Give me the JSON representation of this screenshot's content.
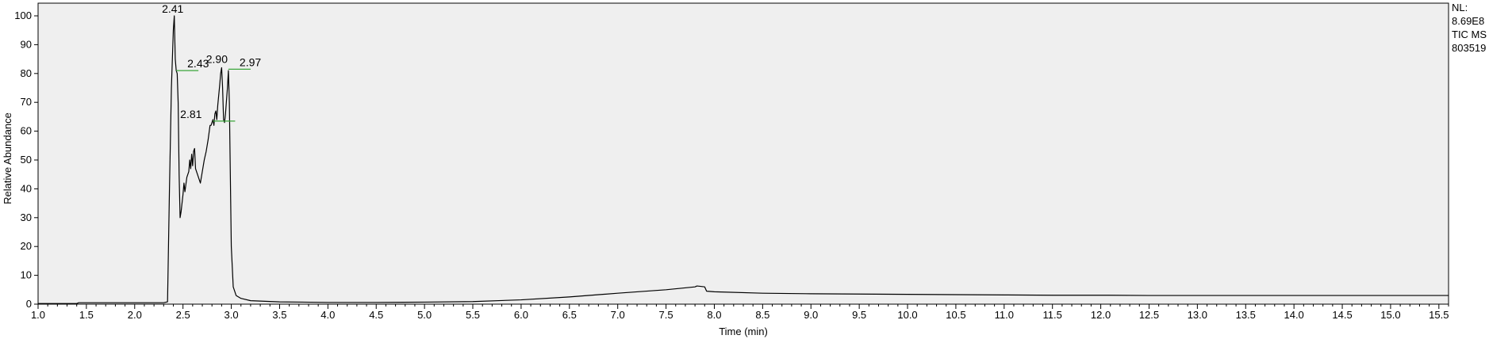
{
  "chart_data": {
    "type": "line",
    "xlabel": "Time (min)",
    "ylabel": "Relative Abundance",
    "xlim": [
      1.0,
      15.6
    ],
    "ylim": [
      0,
      100
    ],
    "x_ticks": [
      "1.0",
      "1.5",
      "2.0",
      "2.5",
      "3.0",
      "3.5",
      "4.0",
      "4.5",
      "5.0",
      "5.5",
      "6.0",
      "6.5",
      "7.0",
      "7.5",
      "8.0",
      "8.5",
      "9.0",
      "9.5",
      "10.0",
      "10.5",
      "11.0",
      "11.5",
      "12.0",
      "12.5",
      "13.0",
      "13.5",
      "14.0",
      "14.5",
      "15.0",
      "15.5"
    ],
    "y_ticks": [
      "0",
      "10",
      "20",
      "30",
      "40",
      "50",
      "60",
      "70",
      "80",
      "90",
      "100"
    ],
    "grid": false,
    "info": [
      "NL:",
      "8.69E8",
      "TIC  MS",
      "803519"
    ],
    "peak_labels": [
      {
        "text": "2.41",
        "x": 2.41,
        "y": 100
      },
      {
        "text": "2.43",
        "x": 2.43,
        "y": 81
      },
      {
        "text": "2.81",
        "x": 2.81,
        "y": 63.5
      },
      {
        "text": "2.90",
        "x": 2.9,
        "y": 81.5
      },
      {
        "text": "2.97",
        "x": 2.97,
        "y": 81.5
      }
    ],
    "series": [
      {
        "points": [
          [
            1.0,
            0.2
          ],
          [
            1.4,
            0.2
          ],
          [
            1.42,
            0.5
          ],
          [
            2.3,
            0.5
          ],
          [
            2.34,
            0.8
          ],
          [
            2.36,
            40
          ],
          [
            2.38,
            75
          ],
          [
            2.4,
            95
          ],
          [
            2.41,
            100
          ],
          [
            2.42,
            85
          ],
          [
            2.43,
            81
          ],
          [
            2.44,
            80
          ],
          [
            2.45,
            70
          ],
          [
            2.46,
            45
          ],
          [
            2.47,
            30
          ],
          [
            2.48,
            32
          ],
          [
            2.5,
            38
          ],
          [
            2.51,
            42
          ],
          [
            2.52,
            39
          ],
          [
            2.54,
            44
          ],
          [
            2.56,
            46
          ],
          [
            2.57,
            50
          ],
          [
            2.58,
            47
          ],
          [
            2.59,
            52
          ],
          [
            2.6,
            48
          ],
          [
            2.61,
            53
          ],
          [
            2.62,
            54
          ],
          [
            2.63,
            47
          ],
          [
            2.65,
            45
          ],
          [
            2.67,
            43
          ],
          [
            2.68,
            42
          ],
          [
            2.7,
            46
          ],
          [
            2.72,
            50
          ],
          [
            2.74,
            53
          ],
          [
            2.76,
            57
          ],
          [
            2.78,
            62
          ],
          [
            2.79,
            62
          ],
          [
            2.8,
            63
          ],
          [
            2.81,
            64
          ],
          [
            2.82,
            62
          ],
          [
            2.83,
            66
          ],
          [
            2.84,
            67
          ],
          [
            2.85,
            64
          ],
          [
            2.86,
            69
          ],
          [
            2.88,
            76
          ],
          [
            2.89,
            80
          ],
          [
            2.9,
            82
          ],
          [
            2.91,
            75
          ],
          [
            2.92,
            64
          ],
          [
            2.93,
            63
          ],
          [
            2.94,
            66
          ],
          [
            2.96,
            75
          ],
          [
            2.97,
            81
          ],
          [
            2.98,
            70
          ],
          [
            2.99,
            45
          ],
          [
            3.0,
            20
          ],
          [
            3.02,
            6
          ],
          [
            3.05,
            3
          ],
          [
            3.1,
            2
          ],
          [
            3.2,
            1.2
          ],
          [
            3.5,
            0.8
          ],
          [
            4.0,
            0.6
          ],
          [
            4.5,
            0.6
          ],
          [
            5.0,
            0.7
          ],
          [
            5.5,
            0.9
          ],
          [
            6.0,
            1.5
          ],
          [
            6.5,
            2.5
          ],
          [
            7.0,
            3.8
          ],
          [
            7.5,
            5.0
          ],
          [
            7.8,
            6.0
          ],
          [
            7.82,
            6.3
          ],
          [
            7.85,
            6.2
          ],
          [
            7.9,
            6.0
          ],
          [
            7.92,
            4.5
          ],
          [
            8.0,
            4.3
          ],
          [
            8.5,
            3.8
          ],
          [
            9.0,
            3.6
          ],
          [
            9.5,
            3.5
          ],
          [
            10.0,
            3.4
          ],
          [
            10.5,
            3.3
          ],
          [
            11.0,
            3.2
          ],
          [
            11.5,
            3.1
          ],
          [
            12.0,
            3.1
          ],
          [
            12.5,
            3.0
          ],
          [
            13.0,
            3.0
          ],
          [
            13.5,
            3.0
          ],
          [
            14.0,
            3.0
          ],
          [
            14.5,
            3.0
          ],
          [
            15.0,
            3.0
          ],
          [
            15.6,
            3.0
          ]
        ]
      }
    ]
  }
}
